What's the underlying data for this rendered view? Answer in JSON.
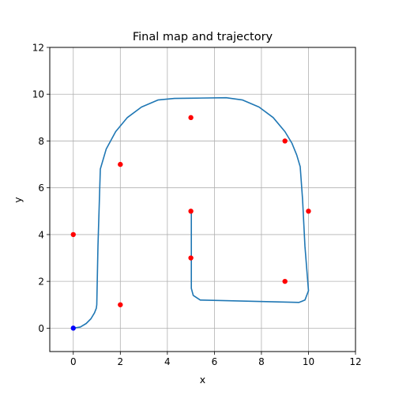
{
  "chart_data": {
    "type": "scatter",
    "title": "Final map and trajectory",
    "xlabel": "x",
    "ylabel": "y",
    "xlim": [
      -1,
      12
    ],
    "ylim": [
      -1,
      12
    ],
    "x_ticks": [
      0,
      2,
      4,
      6,
      8,
      10,
      12
    ],
    "y_ticks": [
      0,
      2,
      4,
      6,
      8,
      10,
      12
    ],
    "grid": true,
    "landmarks": {
      "color": "#ff0000",
      "x": [
        0,
        2,
        2,
        5,
        5,
        5,
        9,
        9,
        10
      ],
      "y": [
        4,
        1,
        7,
        9,
        5,
        3,
        8,
        2,
        5
      ]
    },
    "start_point": {
      "color": "#0000ff",
      "x": 0,
      "y": 0
    },
    "trajectory": {
      "color": "#1f77b4",
      "x": [
        0,
        0.3,
        0.55,
        0.75,
        0.9,
        0.98,
        1.0,
        1.05,
        1.15,
        1.4,
        1.8,
        2.3,
        2.9,
        3.6,
        4.3,
        5.0,
        6.5,
        7.2,
        7.9,
        8.5,
        9.0,
        9.3,
        9.5,
        9.65,
        9.75,
        9.85,
        10.0,
        9.85,
        9.6,
        5.4,
        5.1,
        5.02,
        5.02,
        5.02
      ],
      "y": [
        0,
        0.05,
        0.2,
        0.4,
        0.65,
        0.85,
        1.0,
        3.5,
        6.8,
        7.65,
        8.4,
        9.0,
        9.45,
        9.75,
        9.82,
        9.83,
        9.85,
        9.75,
        9.45,
        9.0,
        8.4,
        7.9,
        7.4,
        6.9,
        5.5,
        3.5,
        1.6,
        1.2,
        1.1,
        1.2,
        1.4,
        1.7,
        3.2,
        5.0
      ]
    }
  }
}
